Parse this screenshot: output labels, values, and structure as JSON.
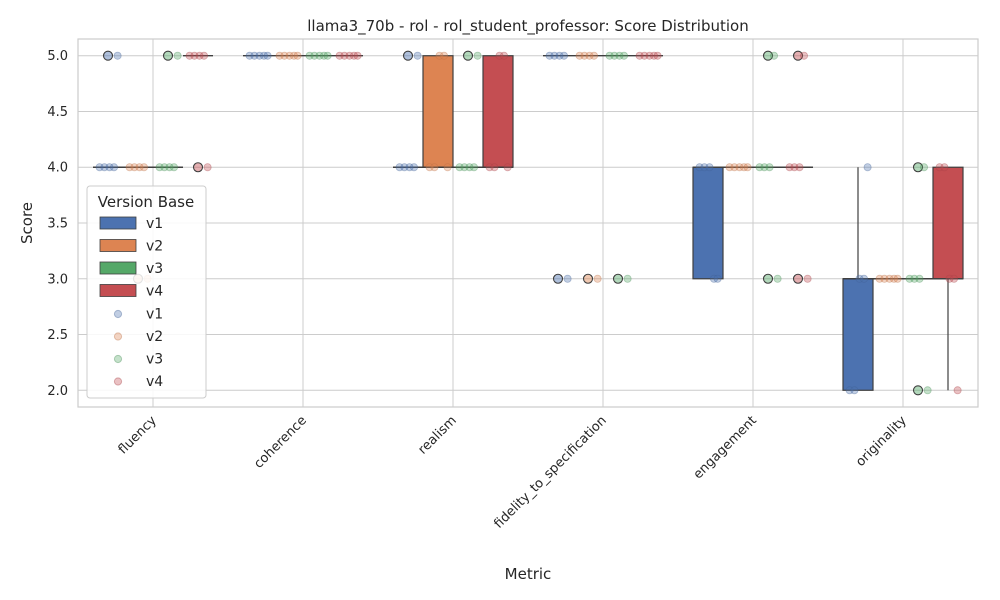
{
  "chart_data": {
    "type": "box",
    "title": "llama3_70b - rol - rol_student_professor: Score Distribution",
    "xlabel": "Metric",
    "ylabel": "Score",
    "ylim": [
      1.85,
      5.15
    ],
    "yticks": [
      "2.0",
      "2.5",
      "3.0",
      "3.5",
      "4.0",
      "4.5",
      "5.0"
    ],
    "grid": true,
    "legend_position": "center-left",
    "legend_title": "Version Base",
    "categories": [
      "fluency",
      "coherence",
      "realism",
      "fidelity_to_specification",
      "engagement",
      "originality"
    ],
    "series": [
      {
        "name": "v1",
        "color": "#4c72b0",
        "boxes": [
          {
            "min": 4,
            "q1": 4,
            "median": 4,
            "q3": 4,
            "max": 4,
            "outliers": [
              5
            ]
          },
          {
            "min": 5,
            "q1": 5,
            "median": 5,
            "q3": 5,
            "max": 5,
            "outliers": []
          },
          {
            "min": 4,
            "q1": 4,
            "median": 4,
            "q3": 4,
            "max": 4,
            "outliers": [
              5
            ]
          },
          {
            "min": 5,
            "q1": 5,
            "median": 5,
            "q3": 5,
            "max": 5,
            "outliers": [
              3
            ]
          },
          {
            "min": 3,
            "q1": 3,
            "median": 4,
            "q3": 4,
            "max": 4,
            "outliers": []
          },
          {
            "min": 2,
            "q1": 2,
            "median": 3,
            "q3": 3,
            "max": 4,
            "outliers": []
          }
        ],
        "points": [
          [
            4,
            4,
            4,
            4,
            5
          ],
          [
            5,
            5,
            5,
            5,
            5
          ],
          [
            4,
            4,
            4,
            4,
            5
          ],
          [
            5,
            5,
            5,
            5,
            3
          ],
          [
            4,
            4,
            4,
            3,
            3
          ],
          [
            2,
            2,
            3,
            3,
            4
          ]
        ]
      },
      {
        "name": "v2",
        "color": "#dd8452",
        "boxes": [
          {
            "min": 4,
            "q1": 4,
            "median": 4,
            "q3": 4,
            "max": 4,
            "outliers": [
              3
            ]
          },
          {
            "min": 5,
            "q1": 5,
            "median": 5,
            "q3": 5,
            "max": 5,
            "outliers": []
          },
          {
            "min": 4,
            "q1": 4,
            "median": 4,
            "q3": 5,
            "max": 5,
            "outliers": []
          },
          {
            "min": 5,
            "q1": 5,
            "median": 5,
            "q3": 5,
            "max": 5,
            "outliers": [
              3
            ]
          },
          {
            "min": 4,
            "q1": 4,
            "median": 4,
            "q3": 4,
            "max": 4,
            "outliers": []
          },
          {
            "min": 3,
            "q1": 3,
            "median": 3,
            "q3": 3,
            "max": 3,
            "outliers": []
          }
        ],
        "points": [
          [
            4,
            4,
            4,
            4,
            3
          ],
          [
            5,
            5,
            5,
            5,
            5
          ],
          [
            4,
            4,
            5,
            5,
            4
          ],
          [
            5,
            5,
            5,
            5,
            3
          ],
          [
            4,
            4,
            4,
            4,
            4
          ],
          [
            3,
            3,
            3,
            3,
            3
          ]
        ]
      },
      {
        "name": "v3",
        "color": "#55a868",
        "boxes": [
          {
            "min": 4,
            "q1": 4,
            "median": 4,
            "q3": 4,
            "max": 4,
            "outliers": [
              5
            ]
          },
          {
            "min": 5,
            "q1": 5,
            "median": 5,
            "q3": 5,
            "max": 5,
            "outliers": []
          },
          {
            "min": 4,
            "q1": 4,
            "median": 4,
            "q3": 4,
            "max": 4,
            "outliers": [
              5
            ]
          },
          {
            "min": 5,
            "q1": 5,
            "median": 5,
            "q3": 5,
            "max": 5,
            "outliers": [
              3
            ]
          },
          {
            "min": 4,
            "q1": 4,
            "median": 4,
            "q3": 4,
            "max": 4,
            "outliers": [
              5,
              3
            ]
          },
          {
            "min": 3,
            "q1": 3,
            "median": 3,
            "q3": 3,
            "max": 3,
            "outliers": [
              4,
              2
            ]
          }
        ],
        "points": [
          [
            4,
            4,
            4,
            4,
            5
          ],
          [
            5,
            5,
            5,
            5,
            5
          ],
          [
            4,
            4,
            4,
            4,
            5
          ],
          [
            5,
            5,
            5,
            5,
            3
          ],
          [
            4,
            4,
            4,
            5,
            3
          ],
          [
            3,
            3,
            3,
            4,
            2
          ]
        ]
      },
      {
        "name": "v4",
        "color": "#c44e52",
        "boxes": [
          {
            "min": 5,
            "q1": 5,
            "median": 5,
            "q3": 5,
            "max": 5,
            "outliers": [
              4
            ]
          },
          {
            "min": 5,
            "q1": 5,
            "median": 5,
            "q3": 5,
            "max": 5,
            "outliers": []
          },
          {
            "min": 4,
            "q1": 4,
            "median": 4,
            "q3": 5,
            "max": 5,
            "outliers": []
          },
          {
            "min": 5,
            "q1": 5,
            "median": 5,
            "q3": 5,
            "max": 5,
            "outliers": []
          },
          {
            "min": 4,
            "q1": 4,
            "median": 4,
            "q3": 4,
            "max": 4,
            "outliers": [
              5,
              3
            ]
          },
          {
            "min": 2,
            "q1": 3,
            "median": 3,
            "q3": 4,
            "max": 4,
            "outliers": []
          }
        ],
        "points": [
          [
            5,
            5,
            5,
            5,
            4
          ],
          [
            5,
            5,
            5,
            5,
            5
          ],
          [
            4,
            4,
            5,
            5,
            4
          ],
          [
            5,
            5,
            5,
            5,
            5
          ],
          [
            4,
            4,
            4,
            5,
            3
          ],
          [
            4,
            4,
            3,
            3,
            2
          ]
        ]
      }
    ]
  }
}
